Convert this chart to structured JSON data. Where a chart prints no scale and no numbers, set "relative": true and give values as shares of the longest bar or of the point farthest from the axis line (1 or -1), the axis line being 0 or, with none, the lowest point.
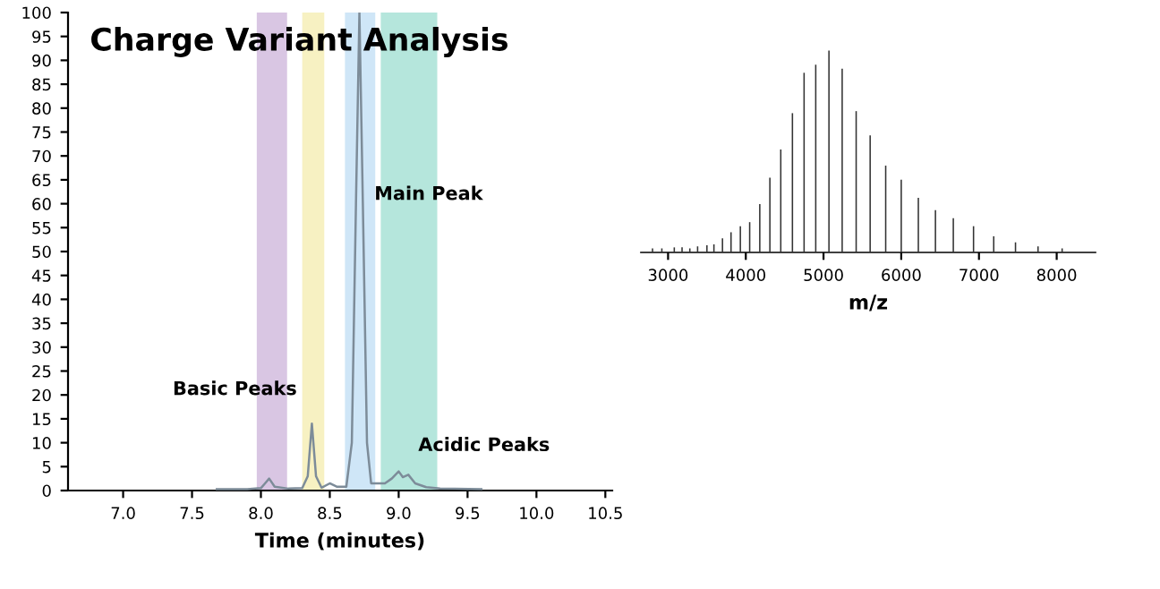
{
  "chart_data": [
    {
      "type": "line",
      "title": "Charge Variant Analysis",
      "xlabel": "Time (minutes)",
      "series": [
        {
          "color": "#7d8c99",
          "x": [
            7.68,
            7.9,
            8.0,
            8.03,
            8.06,
            8.1,
            8.2,
            8.3,
            8.34,
            8.37,
            8.4,
            8.44,
            8.5,
            8.55,
            8.62,
            8.66,
            8.69,
            8.715,
            8.74,
            8.77,
            8.8,
            8.9,
            8.95,
            9.0,
            9.03,
            9.07,
            9.12,
            9.2,
            9.3,
            9.6
          ],
          "values": [
            0.3,
            0.3,
            0.5,
            1.5,
            2.5,
            0.8,
            0.4,
            0.5,
            3,
            14,
            3,
            0.6,
            1.5,
            0.8,
            0.8,
            10,
            60,
            100,
            60,
            10,
            1.5,
            1.5,
            2.5,
            4,
            2.8,
            3.3,
            1.5,
            0.7,
            0.4,
            0.3
          ]
        }
      ],
      "bands": [
        {
          "axis": "x",
          "from": 7.97,
          "to": 8.19,
          "color": "#d9c6e3"
        },
        {
          "axis": "x",
          "from": 8.3,
          "to": 8.46,
          "color": "#f7f1c2"
        },
        {
          "axis": "x",
          "from": 8.61,
          "to": 8.83,
          "color": "#cfe6f7"
        },
        {
          "axis": "x",
          "from": 8.87,
          "to": 9.28,
          "color": "#b5e6dc"
        }
      ],
      "annotations": [
        {
          "text": "Basic Peaks",
          "x": 8.37,
          "y": 14
        },
        {
          "text": "Main Peak",
          "x": 8.715,
          "y": 60
        },
        {
          "text": "Acidic Peaks",
          "x": 9.07,
          "y": 3.3
        }
      ],
      "xlim": [
        6.6,
        10.55
      ],
      "xticks": [
        {
          "value": 7,
          "label": "7.0"
        },
        7.5,
        {
          "value": 8,
          "label": "8.0"
        },
        8.5,
        {
          "value": 9,
          "label": "9.0"
        },
        9.5,
        {
          "value": 10,
          "label": "10.0"
        },
        10.5
      ],
      "ylim": [
        0,
        100
      ],
      "yticks": [
        0,
        5,
        10,
        15,
        20,
        25,
        30,
        35,
        40,
        45,
        50,
        55,
        60,
        65,
        70,
        75,
        80,
        85,
        90,
        95,
        100
      ]
    },
    {
      "type": "bar",
      "relative": true,
      "xlabel": "m/z",
      "color": "#333333",
      "x": [
        2800,
        2920,
        3080,
        3180,
        3280,
        3380,
        3500,
        3590,
        3700,
        3810,
        3930,
        4050,
        4180,
        4310,
        4450,
        4600,
        4750,
        4900,
        5070,
        5240,
        5420,
        5600,
        5800,
        6000,
        6220,
        6440,
        6670,
        6930,
        7190,
        7470,
        7760,
        8070
      ],
      "values": [
        0.02,
        0.02,
        0.025,
        0.025,
        0.02,
        0.03,
        0.035,
        0.04,
        0.07,
        0.1,
        0.13,
        0.15,
        0.24,
        0.37,
        0.51,
        0.69,
        0.89,
        0.93,
        1,
        0.91,
        0.7,
        0.58,
        0.43,
        0.36,
        0.27,
        0.21,
        0.17,
        0.13,
        0.08,
        0.05,
        0.03,
        0.02
      ],
      "xlim": [
        2650,
        8500
      ],
      "xticks": [
        3000,
        4000,
        5000,
        6000,
        7000,
        8000
      ]
    }
  ]
}
